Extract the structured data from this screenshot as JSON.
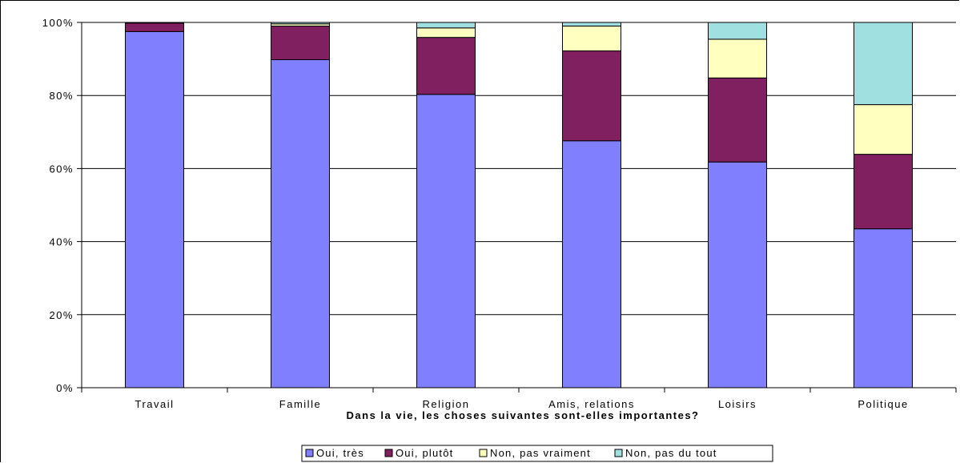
{
  "chart_data": {
    "type": "bar",
    "stacked": true,
    "percent": true,
    "categories": [
      "Travail",
      "Famille",
      "Religion",
      "Amis, relations",
      "Loisirs",
      "Politique"
    ],
    "series": [
      {
        "name": "Oui, très",
        "color": "#8080ff",
        "values": [
          97.5,
          89.8,
          80.3,
          67.6,
          61.8,
          43.5
        ]
      },
      {
        "name": "Oui, plutôt",
        "color": "#802060",
        "values": [
          2.3,
          9.2,
          15.6,
          24.6,
          23.0,
          20.4
        ]
      },
      {
        "name": "Non, pas vraiment",
        "color": "#ffffc0",
        "values": [
          0.1,
          0.6,
          2.6,
          6.8,
          10.6,
          13.6
        ]
      },
      {
        "name": "Non, pas du tout",
        "color": "#a0e0e0",
        "values": [
          0.1,
          0.4,
          1.5,
          1.0,
          4.6,
          22.5
        ]
      }
    ],
    "xlabel": "Dans la vie, les choses suivantes sont-elles importantes?",
    "ylabel": "",
    "ylim": [
      0,
      100
    ],
    "yticks": [
      "0%",
      "20%",
      "40%",
      "60%",
      "80%",
      "100%"
    ],
    "grid": true,
    "legend_position": "bottom"
  }
}
